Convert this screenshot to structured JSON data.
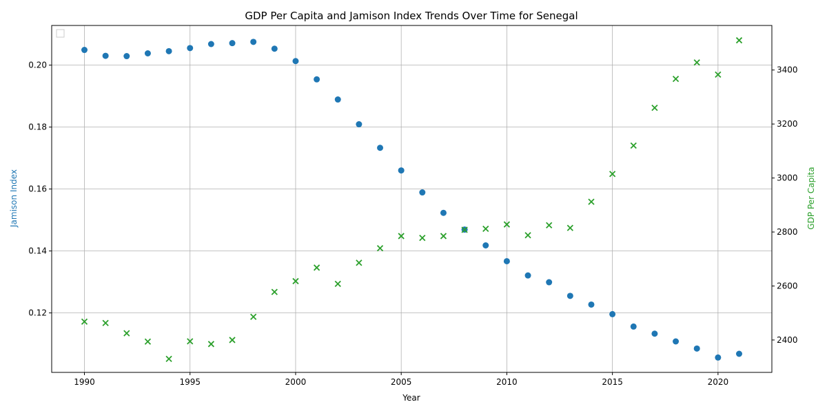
{
  "chart_data": {
    "type": "scatter",
    "title": "GDP Per Capita and Jamison Index Trends Over Time for Senegal",
    "xlabel": "Year",
    "ylabel_left": "Jamison Index",
    "ylabel_right": "GDP Per Capita",
    "xlim": [
      1988.45,
      2022.55
    ],
    "ylim_left": [
      0.1008,
      0.2128
    ],
    "ylim_right": [
      2280,
      3565
    ],
    "x_ticks": [
      1990,
      1995,
      2000,
      2005,
      2010,
      2015,
      2020
    ],
    "y_left_ticks": [
      0.12,
      0.14,
      0.16,
      0.18,
      0.2
    ],
    "y_right_ticks": [
      2400,
      2600,
      2800,
      3000,
      3200,
      3400
    ],
    "grid": true,
    "legend": "top-left (empty)",
    "colors": {
      "jamison": "#1f77b4",
      "gdp": "#2ca02c",
      "left_label": "#1f77b4",
      "right_label": "#2ca02c"
    },
    "x": [
      1990,
      1991,
      1992,
      1993,
      1994,
      1995,
      1996,
      1997,
      1998,
      1999,
      2000,
      2001,
      2002,
      2003,
      2004,
      2005,
      2006,
      2007,
      2008,
      2009,
      2010,
      2011,
      2012,
      2013,
      2014,
      2015,
      2016,
      2017,
      2018,
      2019,
      2020,
      2021
    ],
    "series": [
      {
        "axis": "left",
        "marker": "circle",
        "values": [
          0.2049,
          0.203,
          0.2029,
          0.2038,
          0.2045,
          0.2055,
          0.2068,
          0.2071,
          0.2075,
          0.2053,
          0.2013,
          0.1954,
          0.1889,
          0.1809,
          0.1733,
          0.166,
          0.1589,
          0.1523,
          0.1469,
          0.1418,
          0.1367,
          0.1321,
          0.1299,
          0.1255,
          0.1227,
          0.1196,
          0.1156,
          0.1133,
          0.1108,
          0.1085,
          0.1056,
          0.1068
        ]
      },
      {
        "axis": "right",
        "marker": "x",
        "values": [
          2468,
          2463,
          2425,
          2394,
          2330,
          2395,
          2385,
          2400,
          2486,
          2578,
          2618,
          2668,
          2608,
          2686,
          2740,
          2785,
          2778,
          2785,
          2808,
          2812,
          2828,
          2788,
          2825,
          2815,
          2912,
          3015,
          3120,
          3260,
          3367,
          3428,
          3383,
          3510
        ]
      }
    ]
  }
}
